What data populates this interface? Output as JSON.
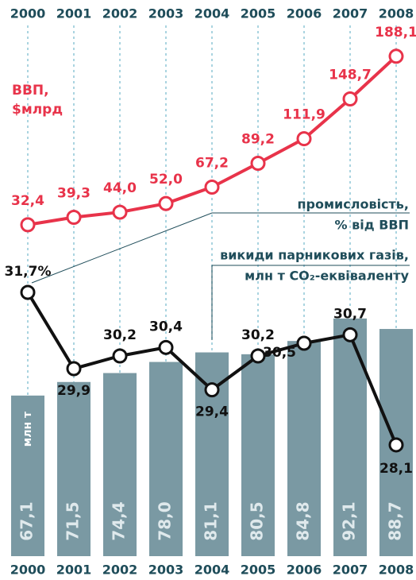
{
  "chart_data": {
    "type": "combo",
    "categories": [
      "2000",
      "2001",
      "2002",
      "2003",
      "2004",
      "2005",
      "2006",
      "2007",
      "2008"
    ],
    "ylim": [
      15,
      95
    ],
    "y2lim": [
      28,
      32
    ],
    "y3lim": [
      0,
      200
    ],
    "series": [
      {
        "type": "bar",
        "name": [
          "викиди парникових газів,",
          "млн т CO₂-еквіваленту"
        ],
        "unit": "млн т",
        "color": "#7a99a3",
        "values": [
          67.1,
          71.5,
          74.4,
          78.0,
          81.1,
          80.5,
          84.8,
          92.1,
          88.7
        ],
        "value_labels": [
          "67,1",
          "71,5",
          "74,4",
          "78,0",
          "81,1",
          "80,5",
          "84,8",
          "92,1",
          "88,7"
        ]
      },
      {
        "type": "line",
        "axis": "y2",
        "name": [
          "промисловість,",
          "% від ВВП"
        ],
        "color": "#111111",
        "values": [
          31.7,
          29.9,
          30.2,
          30.4,
          29.4,
          30.2,
          30.5,
          30.7,
          28.1
        ],
        "value_labels": [
          "31,7%",
          "29,9",
          "30,2",
          "30,4",
          "29,4",
          "30,2",
          "30,5",
          "30,7",
          "28,1"
        ]
      },
      {
        "type": "line",
        "axis": "y3",
        "name": [
          "ВВП,",
          "$млрд"
        ],
        "color": "#e8334a",
        "values": [
          32.4,
          39.3,
          44.0,
          52.0,
          67.2,
          89.2,
          111.9,
          148.7,
          188.1
        ],
        "value_labels": [
          "32,4",
          "39,3",
          "44,0",
          "52,0",
          "67,2",
          "89,2",
          "111,9",
          "148,7",
          "188,1"
        ]
      }
    ]
  }
}
